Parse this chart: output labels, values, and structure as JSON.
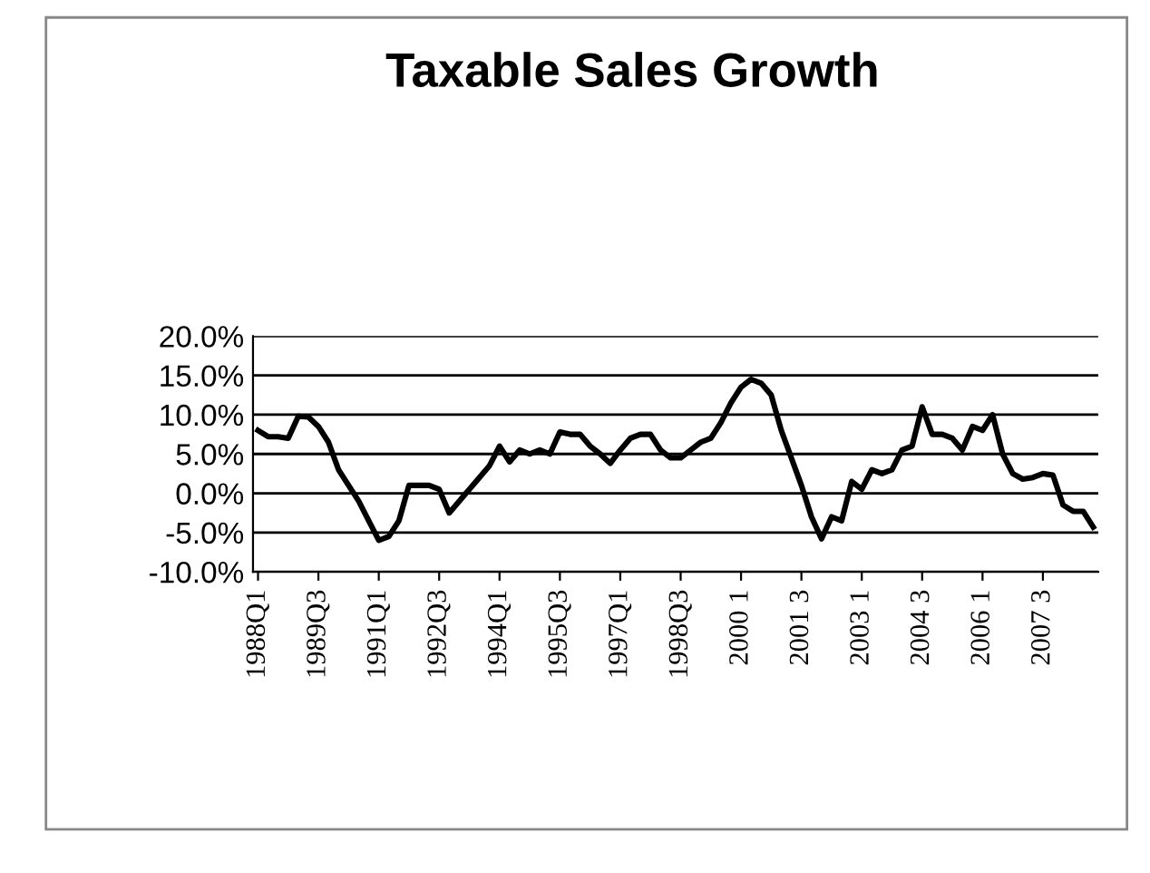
{
  "chart_data": {
    "type": "line",
    "title": "Taxable Sales Growth",
    "categories": [
      "1988Q1",
      null,
      null,
      null,
      null,
      null,
      "1989Q3",
      null,
      null,
      null,
      null,
      null,
      "1991Q1",
      null,
      null,
      null,
      null,
      null,
      "1992Q3",
      null,
      null,
      null,
      null,
      null,
      "1994Q1",
      null,
      null,
      null,
      null,
      null,
      "1995Q3",
      null,
      null,
      null,
      null,
      null,
      "1997Q1",
      null,
      null,
      null,
      null,
      null,
      "1998Q3",
      null,
      null,
      null,
      null,
      null,
      "2000 1",
      null,
      null,
      null,
      null,
      null,
      "2001 3",
      null,
      null,
      null,
      null,
      null,
      "2003 1",
      null,
      null,
      null,
      null,
      null,
      "2004 3",
      null,
      null,
      null,
      null,
      null,
      "2006 1",
      null,
      null,
      null,
      null,
      null,
      "2007 3",
      null,
      null,
      null,
      null,
      null
    ],
    "series": [
      {
        "color": "#000000",
        "values": [
          8,
          7.2,
          7.2,
          7,
          9.8,
          9.7,
          8.5,
          6.5,
          3,
          1,
          -1,
          -3.5,
          -6,
          -5.5,
          -3.5,
          1,
          1,
          1,
          0.5,
          -2.5,
          -1,
          0.5,
          2,
          3.5,
          6,
          4,
          5.5,
          5,
          5.5,
          5,
          7.8,
          7.5,
          7.5,
          6,
          5,
          3.8,
          5.5,
          7,
          7.5,
          7.5,
          5.5,
          4.5,
          4.5,
          5.5,
          6.5,
          7,
          9,
          11.5,
          13.5,
          14.5,
          14,
          12.5,
          8,
          4.5,
          1,
          -3,
          -5.8,
          -3,
          -3.5,
          1.5,
          0.5,
          3,
          2.5,
          3,
          5.5,
          6,
          11,
          7.5,
          7.5,
          7,
          5.5,
          8.5,
          8,
          10,
          5,
          2.5,
          1.8,
          2,
          2.5,
          2.3,
          -1.5,
          -2.3,
          -2.3,
          -4.3
        ]
      }
    ],
    "ylim": [
      -10,
      20
    ],
    "yticks": [
      {
        "value": -10,
        "label": "-10.0%"
      },
      {
        "value": -5,
        "label": "-5.0%"
      },
      {
        "value": 0,
        "label": "0.0%"
      },
      {
        "value": 5,
        "label": "5.0%"
      },
      {
        "value": 10,
        "label": "10.0%"
      },
      {
        "value": 15,
        "label": "15.0%"
      },
      {
        "value": 20,
        "label": "20.0%"
      }
    ],
    "grid": "y",
    "marker": "none",
    "line_style": "solid"
  }
}
